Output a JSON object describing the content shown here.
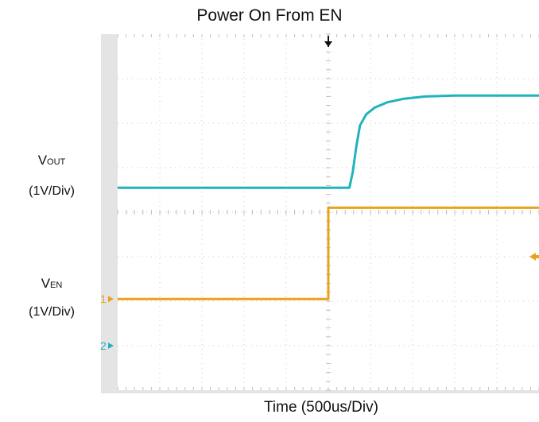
{
  "chart_data": {
    "type": "line",
    "title": "Power On From EN",
    "xlabel": "Time (500us/Div)",
    "x_divisions": 10,
    "y_divisions": 8,
    "grid": true,
    "channel_labels": [
      {
        "main": "V",
        "sub": "OUT",
        "scale": "(1V/Div)"
      },
      {
        "main": "V",
        "sub": "EN",
        "scale": "(1V/Div)"
      }
    ],
    "markers": [
      {
        "name": "ch1-ground-marker",
        "label": "1",
        "color": "#e8a21c"
      },
      {
        "name": "ch2-ground-marker",
        "label": "2",
        "color": "#1fb3bd"
      }
    ],
    "trigger_time_div": 5.0,
    "series": [
      {
        "name": "VOUT",
        "color": "#1fb3bd",
        "points_div": [
          [
            0,
            4.55
          ],
          [
            5.5,
            4.55
          ],
          [
            5.58,
            4.9
          ],
          [
            5.66,
            5.45
          ],
          [
            5.75,
            5.95
          ],
          [
            5.9,
            6.2
          ],
          [
            6.1,
            6.35
          ],
          [
            6.4,
            6.47
          ],
          [
            6.8,
            6.55
          ],
          [
            7.3,
            6.6
          ],
          [
            8,
            6.62
          ],
          [
            10,
            6.62
          ]
        ]
      },
      {
        "name": "VEN",
        "color": "#e8a21c",
        "points_div": [
          [
            0,
            2.05
          ],
          [
            5.0,
            2.05
          ],
          [
            5.0,
            4.1
          ],
          [
            10,
            4.1
          ]
        ]
      }
    ]
  }
}
